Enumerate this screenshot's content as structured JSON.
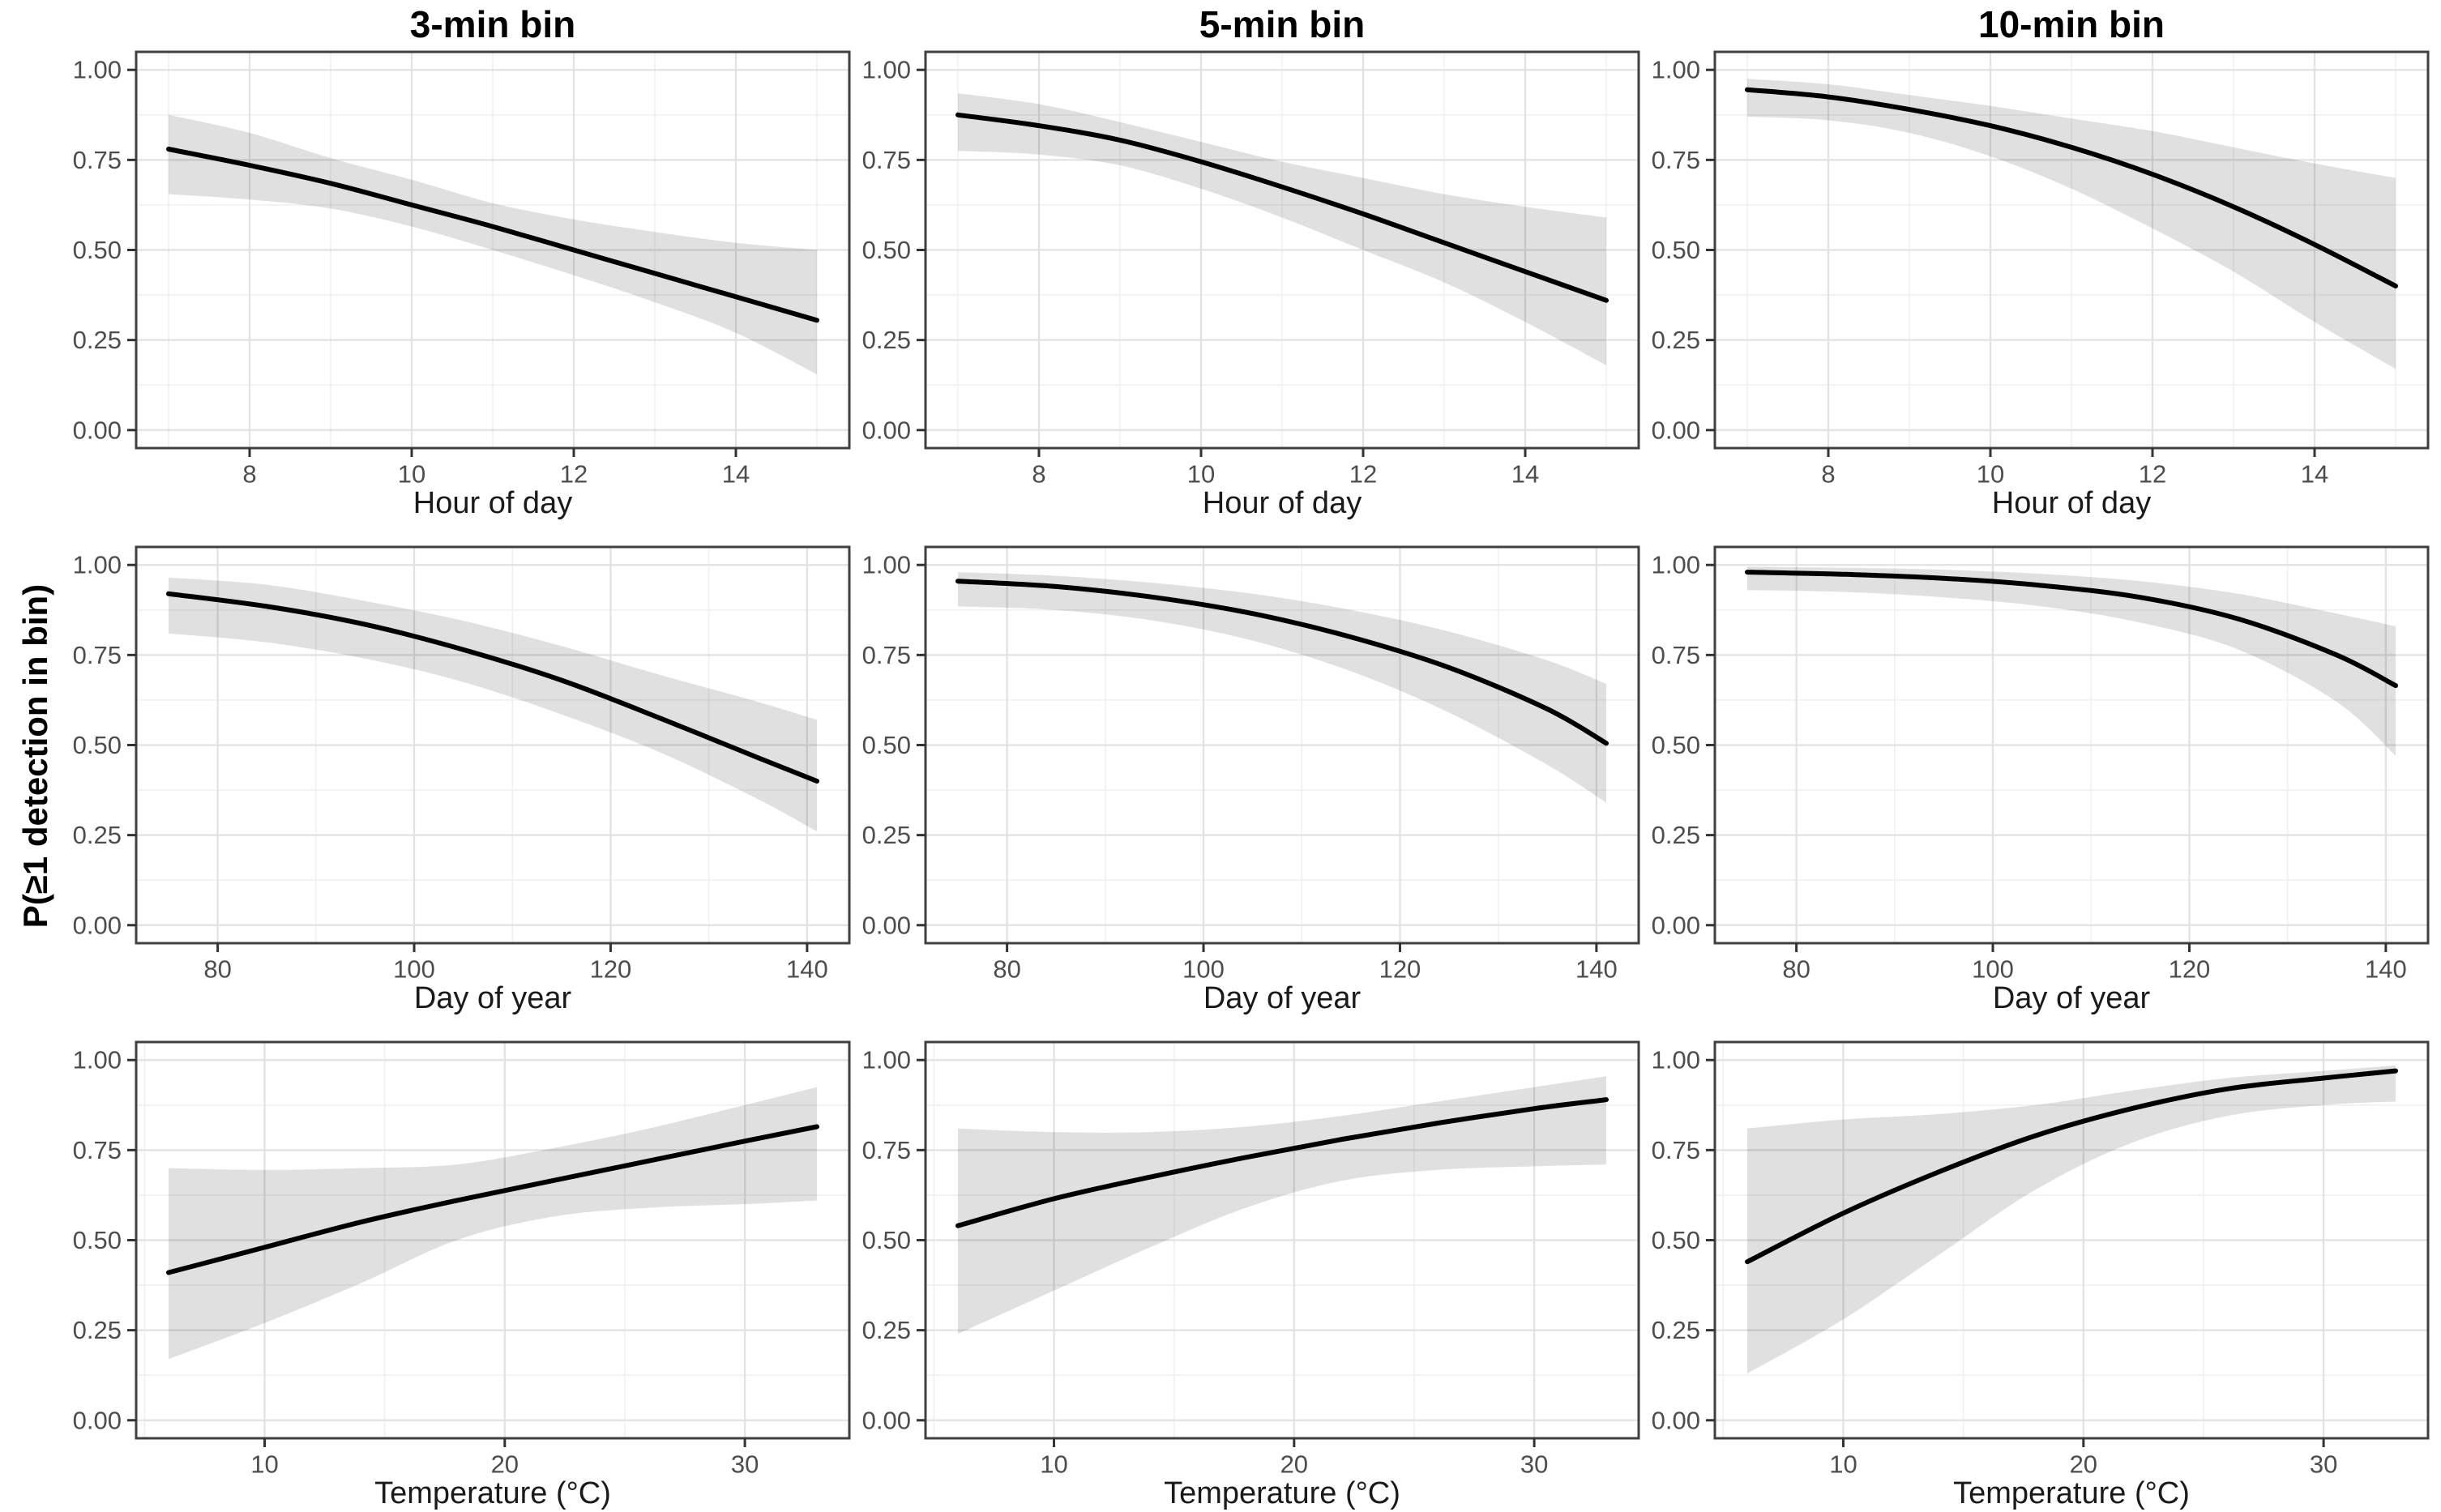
{
  "chart_data": {
    "type": "line",
    "description": "3x3 grid of GAM/GLM predicted detection probability curves with grey confidence ribbons",
    "ylabel": "P(≥1 detection in bin)",
    "y_axis": {
      "range": [
        -0.05,
        1.05
      ],
      "ticks": [
        0,
        0.25,
        0.5,
        0.75,
        1
      ],
      "tick_labels": [
        "0.00",
        "0.25",
        "0.50",
        "0.75",
        "1.00"
      ],
      "minor": [
        0.125,
        0.375,
        0.625,
        0.875
      ]
    },
    "columns": [
      {
        "id": "3min",
        "title": "3-min bin"
      },
      {
        "id": "5min",
        "title": "5-min bin"
      },
      {
        "id": "10min",
        "title": "10-min bin"
      }
    ],
    "rows": [
      {
        "id": "hour",
        "xlabel": "Hour of day",
        "x_range": [
          6.6,
          15.4
        ],
        "x_ticks": [
          8,
          10,
          12,
          14
        ],
        "x_minor": [
          7,
          9,
          11,
          13,
          15
        ]
      },
      {
        "id": "day",
        "xlabel": "Day of year",
        "x_range": [
          71.7,
          144.3
        ],
        "x_ticks": [
          80,
          100,
          120,
          140
        ],
        "x_minor": [
          90,
          110,
          130
        ]
      },
      {
        "id": "temp",
        "xlabel": "Temperature (°C)",
        "x_range": [
          4.65,
          34.35
        ],
        "x_ticks": [
          10,
          20,
          30
        ],
        "x_minor": [
          5,
          15,
          25
        ]
      }
    ],
    "style": {
      "line_color": "#000000",
      "line_width": 6,
      "ribbon_color": "rgba(0,0,0,0.12)",
      "grid_major": "#e2e2e2",
      "grid_minor": "#f0f0f0",
      "border_color": "#404040",
      "tick_color": "#333333",
      "tick_label_color": "#4d4d4d"
    },
    "panels": [
      {
        "row": "hour",
        "col": "3min",
        "x": [
          7,
          8,
          9,
          10,
          11,
          12,
          13,
          14,
          15
        ],
        "y": [
          0.78,
          0.735,
          0.685,
          0.625,
          0.565,
          0.5,
          0.435,
          0.37,
          0.305
        ],
        "lo": [
          0.655,
          0.64,
          0.615,
          0.565,
          0.5,
          0.43,
          0.355,
          0.27,
          0.155
        ],
        "hi": [
          0.875,
          0.825,
          0.755,
          0.695,
          0.63,
          0.585,
          0.55,
          0.52,
          0.5
        ]
      },
      {
        "row": "hour",
        "col": "5min",
        "x": [
          7,
          8,
          9,
          10,
          11,
          12,
          13,
          14,
          15
        ],
        "y": [
          0.875,
          0.845,
          0.805,
          0.745,
          0.675,
          0.6,
          0.52,
          0.44,
          0.36
        ],
        "lo": [
          0.775,
          0.765,
          0.735,
          0.67,
          0.59,
          0.5,
          0.41,
          0.3,
          0.18
        ],
        "hi": [
          0.935,
          0.905,
          0.855,
          0.8,
          0.745,
          0.7,
          0.655,
          0.62,
          0.59
        ]
      },
      {
        "row": "hour",
        "col": "10min",
        "x": [
          7,
          8,
          9,
          10,
          11,
          12,
          13,
          14,
          15
        ],
        "y": [
          0.945,
          0.925,
          0.89,
          0.845,
          0.785,
          0.71,
          0.62,
          0.515,
          0.4
        ],
        "lo": [
          0.87,
          0.86,
          0.825,
          0.76,
          0.67,
          0.56,
          0.44,
          0.3,
          0.17
        ],
        "hi": [
          0.975,
          0.96,
          0.93,
          0.9,
          0.865,
          0.83,
          0.785,
          0.74,
          0.7
        ]
      },
      {
        "row": "day",
        "col": "3min",
        "x": [
          75,
          85,
          95,
          105,
          115,
          125,
          135,
          141
        ],
        "y": [
          0.92,
          0.885,
          0.835,
          0.765,
          0.68,
          0.575,
          0.465,
          0.4
        ],
        "lo": [
          0.81,
          0.785,
          0.74,
          0.675,
          0.585,
          0.48,
          0.35,
          0.26
        ],
        "hi": [
          0.965,
          0.945,
          0.9,
          0.845,
          0.775,
          0.695,
          0.62,
          0.57
        ]
      },
      {
        "row": "day",
        "col": "5min",
        "x": [
          75,
          85,
          95,
          105,
          115,
          125,
          135,
          141
        ],
        "y": [
          0.955,
          0.94,
          0.91,
          0.865,
          0.8,
          0.715,
          0.6,
          0.505
        ],
        "lo": [
          0.885,
          0.875,
          0.845,
          0.79,
          0.705,
          0.59,
          0.445,
          0.34
        ],
        "hi": [
          0.98,
          0.97,
          0.95,
          0.92,
          0.875,
          0.815,
          0.735,
          0.67
        ]
      },
      {
        "row": "day",
        "col": "10min",
        "x": [
          75,
          85,
          95,
          105,
          115,
          125,
          135,
          141
        ],
        "y": [
          0.98,
          0.974,
          0.963,
          0.943,
          0.91,
          0.85,
          0.75,
          0.665
        ],
        "lo": [
          0.93,
          0.925,
          0.91,
          0.885,
          0.84,
          0.765,
          0.62,
          0.47
        ],
        "hi": [
          0.995,
          0.992,
          0.987,
          0.975,
          0.955,
          0.92,
          0.865,
          0.83
        ]
      },
      {
        "row": "temp",
        "col": "3min",
        "x": [
          6,
          10,
          14,
          18,
          22,
          26,
          30,
          33
        ],
        "y": [
          0.41,
          0.48,
          0.55,
          0.61,
          0.665,
          0.72,
          0.775,
          0.815
        ],
        "lo": [
          0.17,
          0.27,
          0.38,
          0.5,
          0.565,
          0.59,
          0.6,
          0.61
        ],
        "hi": [
          0.7,
          0.695,
          0.7,
          0.71,
          0.755,
          0.81,
          0.875,
          0.925
        ]
      },
      {
        "row": "temp",
        "col": "5min",
        "x": [
          6,
          10,
          14,
          18,
          22,
          26,
          30,
          33
        ],
        "y": [
          0.54,
          0.615,
          0.675,
          0.73,
          0.78,
          0.825,
          0.865,
          0.89
        ],
        "lo": [
          0.24,
          0.36,
          0.48,
          0.59,
          0.665,
          0.695,
          0.705,
          0.71
        ],
        "hi": [
          0.81,
          0.8,
          0.8,
          0.815,
          0.845,
          0.885,
          0.925,
          0.955
        ]
      },
      {
        "row": "temp",
        "col": "10min",
        "x": [
          6,
          10,
          14,
          18,
          22,
          26,
          30,
          33
        ],
        "y": [
          0.44,
          0.575,
          0.69,
          0.79,
          0.865,
          0.92,
          0.95,
          0.97
        ],
        "lo": [
          0.13,
          0.28,
          0.46,
          0.64,
          0.77,
          0.845,
          0.875,
          0.885
        ],
        "hi": [
          0.81,
          0.835,
          0.85,
          0.875,
          0.915,
          0.95,
          0.97,
          0.985
        ]
      }
    ]
  }
}
